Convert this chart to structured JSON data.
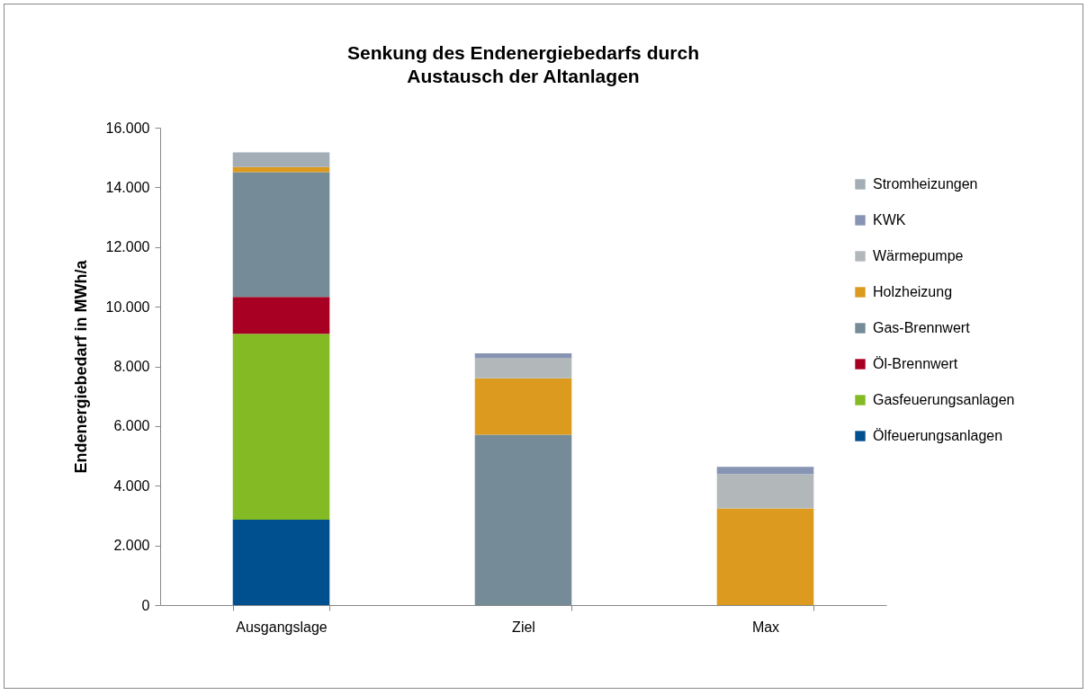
{
  "chart_data": {
    "type": "bar",
    "title": [
      "Senkung des Endenergiebedarfs durch",
      "Austausch der Altanlagen"
    ],
    "ylabel": "Endenergiebedarf in MWh/a",
    "categories": [
      "Ausgangslage",
      "Ziel",
      "Max"
    ],
    "stacked": true,
    "ylim": [
      0,
      16000
    ],
    "yticks": [
      0,
      {
        "value": 2000,
        "label": "2.000"
      },
      {
        "value": 4000,
        "label": "4.000"
      },
      {
        "value": 6000,
        "label": "6.000"
      },
      {
        "value": 8000,
        "label": "8.000"
      },
      {
        "value": 10000,
        "label": "10.000"
      },
      {
        "value": 12000,
        "label": "12.000"
      },
      {
        "value": 14000,
        "label": "14.000"
      },
      {
        "value": 16000,
        "label": "16.000"
      }
    ],
    "grid": false,
    "legend": "right",
    "series": [
      {
        "name": "Ölfeuerungsanlagen",
        "color": "#00508f",
        "values": [
          2860,
          null,
          null
        ]
      },
      {
        "name": "Gasfeuerungsanlagen",
        "color": "#84bb24",
        "values": [
          6230,
          null,
          null
        ]
      },
      {
        "name": "Öl-Brennwert",
        "color": "#a80022",
        "values": [
          1240,
          null,
          null
        ]
      },
      {
        "name": "Gas-Brennwert",
        "color": "#758c98",
        "values": [
          4180,
          5710,
          null
        ]
      },
      {
        "name": "Holzheizung",
        "color": "#dc9b1e",
        "values": [
          170,
          1890,
          3240
        ]
      },
      {
        "name": "Wärmepumpe",
        "color": "#b2b8ba",
        "values": [
          null,
          690,
          1150
        ]
      },
      {
        "name": "KWK",
        "color": "#8794b4",
        "values": [
          null,
          150,
          240
        ]
      },
      {
        "name": "Stromheizungen",
        "color": "#a2adb5",
        "values": [
          490,
          null,
          null
        ]
      }
    ]
  }
}
